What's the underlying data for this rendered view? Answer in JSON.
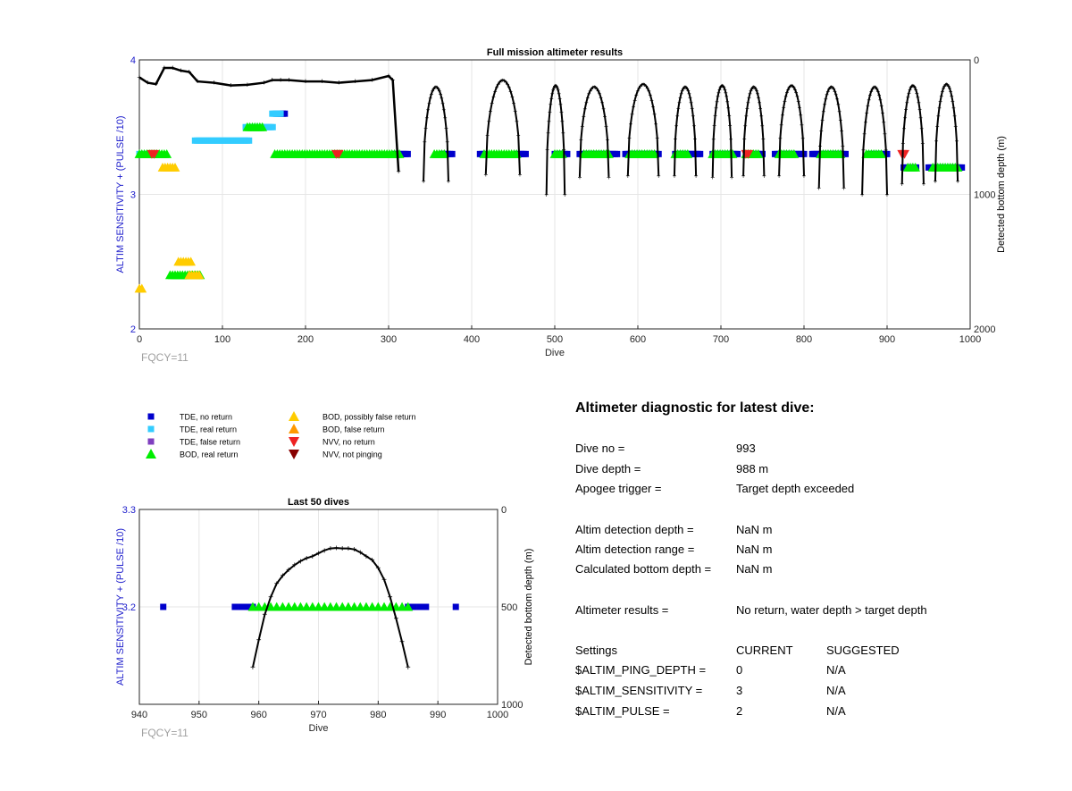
{
  "chart_data": [
    {
      "type": "scatter",
      "title": "Full mission altimeter results",
      "xlabel": "Dive",
      "ylabel": "ALTIM SENSITIVITY + (PULSE /10)",
      "y2label": "Detected bottom depth (m)",
      "xlim": [
        0,
        1000
      ],
      "ylim": [
        2,
        4
      ],
      "y2lim": [
        2000,
        0
      ],
      "y2_reversed": true,
      "xticks": [
        0,
        100,
        200,
        300,
        400,
        500,
        600,
        700,
        800,
        900,
        1000
      ],
      "yticks": [
        2,
        3,
        4
      ],
      "y2ticks": [
        0,
        1000,
        2000
      ],
      "grid": true,
      "annotation": "FQCY=11",
      "marker_series": [
        {
          "name": "TDE, no return",
          "color": "#0000cc",
          "marker": "square",
          "segments": [
            [
              308,
              325,
              3.3
            ],
            [
              364,
              377,
              3.3
            ],
            [
              410,
              415,
              3.3
            ],
            [
              455,
              466,
              3.3
            ],
            [
              500,
              515,
              3.3
            ],
            [
              530,
              575,
              3.3
            ],
            [
              585,
              625,
              3.3
            ],
            [
              645,
              675,
              3.3
            ],
            [
              690,
              720,
              3.3
            ],
            [
              730,
              750,
              3.3
            ],
            [
              765,
              800,
              3.3
            ],
            [
              810,
              850,
              3.3
            ],
            [
              880,
              900,
              3.3
            ],
            [
              920,
              935,
              3.2
            ],
            [
              950,
              990,
              3.2
            ],
            [
              165,
              175,
              3.6
            ]
          ]
        },
        {
          "name": "TDE, real return",
          "color": "#33ccff",
          "marker": "square",
          "segments": [
            [
              67,
              133,
              3.4
            ],
            [
              128,
              162,
              3.5
            ],
            [
              160,
              172,
              3.6
            ],
            [
              0,
              20,
              3.3
            ]
          ]
        },
        {
          "name": "TDE, false return",
          "color": "#7f3fbf",
          "marker": "square",
          "segments": []
        },
        {
          "name": "BOD, real return",
          "color": "#00ee00",
          "marker": "triangle",
          "segments": [
            [
              0,
              33,
              3.3
            ],
            [
              163,
              315,
              3.3
            ],
            [
              355,
              368,
              3.3
            ],
            [
              415,
              455,
              3.3
            ],
            [
              500,
              510,
              3.3
            ],
            [
              535,
              565,
              3.3
            ],
            [
              590,
              620,
              3.3
            ],
            [
              645,
              660,
              3.3
            ],
            [
              690,
              715,
              3.3
            ],
            [
              730,
              745,
              3.3
            ],
            [
              770,
              790,
              3.3
            ],
            [
              820,
              845,
              3.3
            ],
            [
              875,
              895,
              3.3
            ],
            [
              925,
              935,
              3.2
            ],
            [
              955,
              985,
              3.2
            ],
            [
              37,
              75,
              2.4
            ],
            [
              130,
              150,
              3.5
            ]
          ]
        },
        {
          "name": "BOD, possibly false return",
          "color": "#ffcc00",
          "marker": "triangle",
          "segments": [
            [
              28,
              43,
              3.2
            ],
            [
              47,
              62,
              2.5
            ],
            [
              0,
              5,
              2.3
            ],
            [
              60,
              73,
              2.4
            ]
          ]
        },
        {
          "name": "BOD, false return",
          "color": "#ff9900",
          "marker": "triangle",
          "segments": []
        },
        {
          "name": "NVV, no return",
          "color": "#ee2222",
          "marker": "triangle-down",
          "segments": [
            [
              15,
              20,
              3.3
            ],
            [
              237,
              240,
              3.3
            ],
            [
              730,
              735,
              3.3
            ],
            [
              918,
              922,
              3.3
            ]
          ]
        },
        {
          "name": "NVV, not pinging",
          "color": "#880000",
          "marker": "triangle-down",
          "segments": []
        }
      ],
      "depth_series": {
        "name": "Detected bottom depth",
        "color": "#000000",
        "plateau": [
          [
            0,
            130
          ],
          [
            10,
            170
          ],
          [
            20,
            180
          ],
          [
            30,
            60
          ],
          [
            40,
            60
          ],
          [
            50,
            80
          ],
          [
            60,
            90
          ],
          [
            70,
            160
          ],
          [
            90,
            170
          ],
          [
            110,
            190
          ],
          [
            130,
            185
          ],
          [
            150,
            170
          ],
          [
            160,
            150
          ],
          [
            170,
            150
          ],
          [
            180,
            150
          ],
          [
            200,
            160
          ],
          [
            220,
            160
          ],
          [
            240,
            170
          ],
          [
            260,
            160
          ],
          [
            280,
            150
          ],
          [
            300,
            120
          ],
          [
            305,
            150
          ]
        ],
        "drop_end": [
          312,
          830
        ],
        "dives": [
          {
            "start": 342,
            "end": 372,
            "top": 200,
            "bottom": 900
          },
          {
            "start": 417,
            "end": 458,
            "top": 150,
            "bottom": 850
          },
          {
            "start": 490,
            "end": 512,
            "top": 190,
            "bottom": 1000
          },
          {
            "start": 530,
            "end": 565,
            "top": 200,
            "bottom": 870
          },
          {
            "start": 588,
            "end": 625,
            "top": 180,
            "bottom": 860
          },
          {
            "start": 644,
            "end": 670,
            "top": 200,
            "bottom": 860
          },
          {
            "start": 690,
            "end": 713,
            "top": 190,
            "bottom": 870
          },
          {
            "start": 727,
            "end": 752,
            "top": 200,
            "bottom": 860
          },
          {
            "start": 770,
            "end": 800,
            "top": 190,
            "bottom": 860
          },
          {
            "start": 818,
            "end": 848,
            "top": 200,
            "bottom": 950
          },
          {
            "start": 870,
            "end": 900,
            "top": 200,
            "bottom": 1000
          },
          {
            "start": 918,
            "end": 944,
            "top": 190,
            "bottom": 920
          },
          {
            "start": 958,
            "end": 985,
            "top": 180,
            "bottom": 900
          }
        ]
      }
    },
    {
      "type": "scatter",
      "title": "Last 50 dives",
      "xlabel": "Dive",
      "ylabel": "ALTIM SENSITIVITY + (PULSE /10)",
      "y2label": "Detected bottom depth (m)",
      "xlim": [
        940,
        1000
      ],
      "ylim": [
        3.1,
        3.3
      ],
      "y2lim": [
        1000,
        0
      ],
      "y2_reversed": true,
      "xticks": [
        940,
        950,
        960,
        970,
        980,
        990,
        1000
      ],
      "yticks": [
        3.2,
        3.3
      ],
      "y2ticks": [
        0,
        500,
        1000
      ],
      "grid": true,
      "annotation": "FQCY=11",
      "tde_no_return_x": [
        944,
        956,
        957,
        958,
        959,
        985,
        986,
        987,
        988,
        993
      ],
      "bod_real_return_x": [
        959,
        960,
        961,
        962,
        963,
        964,
        965,
        966,
        967,
        968,
        969,
        970,
        971,
        972,
        973,
        974,
        975,
        976,
        977,
        978,
        979,
        980,
        981,
        982,
        983,
        984,
        985
      ],
      "depth_x": [
        959,
        960,
        961,
        962,
        963,
        964,
        965,
        966,
        967,
        968,
        969,
        970,
        971,
        972,
        973,
        974,
        975,
        976,
        977,
        978,
        979,
        980,
        981,
        982,
        983,
        984,
        985
      ],
      "depth_y": [
        810,
        670,
        540,
        450,
        380,
        340,
        310,
        285,
        265,
        250,
        240,
        225,
        210,
        200,
        198,
        200,
        200,
        205,
        220,
        240,
        260,
        300,
        360,
        450,
        560,
        680,
        810
      ]
    }
  ],
  "legend": {
    "col1": [
      {
        "label": "TDE, no return",
        "color": "#0000cc",
        "marker": "square"
      },
      {
        "label": "TDE, real return",
        "color": "#33ccff",
        "marker": "square"
      },
      {
        "label": "TDE, false return",
        "color": "#7f3fbf",
        "marker": "square"
      },
      {
        "label": "BOD, real return",
        "color": "#00ee00",
        "marker": "triangle"
      }
    ],
    "col2": [
      {
        "label": "BOD, possibly false return",
        "color": "#ffcc00",
        "marker": "triangle"
      },
      {
        "label": "BOD, false return",
        "color": "#ff9900",
        "marker": "triangle"
      },
      {
        "label": "NVV, no return",
        "color": "#ee2222",
        "marker": "triangle-down"
      },
      {
        "label": "NVV, not pinging",
        "color": "#880000",
        "marker": "triangle-down"
      }
    ]
  },
  "diagnostic": {
    "title": "Altimeter diagnostic for latest dive:",
    "rows": [
      {
        "label": "Dive no =",
        "value": "993"
      },
      {
        "label": "Dive depth =",
        "value": "988 m"
      },
      {
        "label": "Apogee trigger =",
        "value": "Target depth exceeded"
      },
      {
        "label": "Altim detection depth =",
        "value": "NaN m"
      },
      {
        "label": "Altim detection range =",
        "value": "NaN m"
      },
      {
        "label": "Calculated bottom depth =",
        "value": "NaN m"
      },
      {
        "label": "Altimeter results =",
        "value": "No return, water depth > target depth"
      }
    ],
    "settings_header": {
      "label": "Settings",
      "current": "CURRENT",
      "suggested": "SUGGESTED"
    },
    "settings": [
      {
        "label": "$ALTIM_PING_DEPTH =",
        "current": "0",
        "suggested": "N/A"
      },
      {
        "label": "$ALTIM_SENSITIVITY =",
        "current": "3",
        "suggested": "N/A"
      },
      {
        "label": "$ALTIM_PULSE =",
        "current": "2",
        "suggested": "N/A"
      }
    ]
  },
  "colors": {
    "axis_label_left": "#2020cc",
    "annotation": "#a0a0a0",
    "grid": "#e6e6e6"
  }
}
